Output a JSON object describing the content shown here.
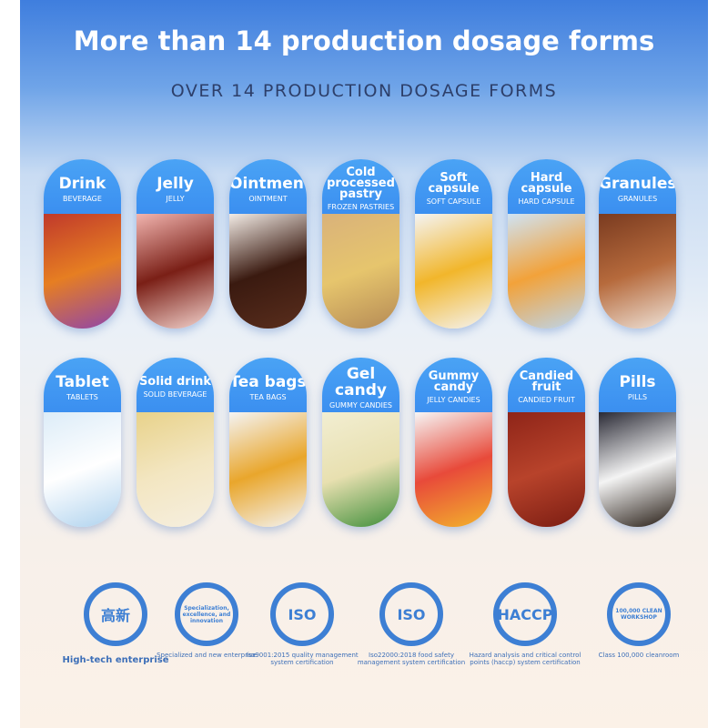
{
  "header": {
    "title": "More than 14 production dosage forms",
    "subtitle": "OVER 14 PRODUCTION DOSAGE FORMS"
  },
  "forms": [
    {
      "title": "Drink",
      "sub": "BEVERAGE",
      "colors": [
        "#c0392b",
        "#e67e22",
        "#8e44ad"
      ]
    },
    {
      "title": "Jelly",
      "sub": "JELLY",
      "colors": [
        "#f2b5b0",
        "#7a1f16",
        "#f5d5cf"
      ]
    },
    {
      "title": "Ointment",
      "sub": "OINTMENT",
      "colors": [
        "#f3ece6",
        "#3a1a10",
        "#5a2e1d"
      ]
    },
    {
      "title": "Cold processed pastry",
      "sub": "FROZEN PASTRIES",
      "colors": [
        "#d9b27a",
        "#e6c56d",
        "#b58a55"
      ]
    },
    {
      "title": "Soft capsule",
      "sub": "SOFT CAPSULE",
      "colors": [
        "#f4f4f4",
        "#f2b62b",
        "#f4f4f4"
      ]
    },
    {
      "title": "Hard capsule",
      "sub": "HARD CAPSULE",
      "colors": [
        "#cfe3f4",
        "#f2a23a",
        "#bcd6ee"
      ]
    },
    {
      "title": "Granules",
      "sub": "GRANULES",
      "colors": [
        "#7a3b20",
        "#b66a3c",
        "#efe4da"
      ]
    },
    {
      "title": "Tablet",
      "sub": "TABLETS",
      "colors": [
        "#dcecf8",
        "#ffffff",
        "#aed2ee"
      ]
    },
    {
      "title": "Solid drink",
      "sub": "SOLID BEVERAGE",
      "colors": [
        "#e8d28a",
        "#f3e6c1",
        "#f6efe0"
      ]
    },
    {
      "title": "Tea bags",
      "sub": "TEA BAGS",
      "colors": [
        "#f4f4f4",
        "#e9a62c",
        "#f4f4f4"
      ]
    },
    {
      "title": "Gel candy",
      "sub": "GUMMY CANDIES",
      "colors": [
        "#f2eed2",
        "#e8e0b0",
        "#3f8e3a"
      ]
    },
    {
      "title": "Gummy candy",
      "sub": "JELLY CANDIES",
      "colors": [
        "#f6f6f6",
        "#e84a3a",
        "#f3b52c"
      ]
    },
    {
      "title": "Candied fruit",
      "sub": "CANDIED FRUIT",
      "colors": [
        "#8e2418",
        "#b8432b",
        "#7a1c12"
      ]
    },
    {
      "title": "Pills",
      "sub": "PILLS",
      "colors": [
        "#2a2a35",
        "#f4f4f4",
        "#241a12"
      ]
    }
  ],
  "certs": [
    {
      "badge": "高新",
      "label": "High-tech enterprise"
    },
    {
      "badge": "Specialization, excellence, and innovation",
      "label": "Specialized and new enterprise"
    },
    {
      "badge": "ISO",
      "label": "Iso9001:2015 quality management system certification"
    },
    {
      "badge": "ISO",
      "label": "Iso22000:2018 food safety management system certification"
    },
    {
      "badge": "HACCP",
      "label": "Hazard analysis and critical control points (haccp) system certification"
    },
    {
      "badge": "100,000 CLEAN WORKSHOP",
      "label": "Class 100,000 cleanroom"
    }
  ],
  "accent": "#3b8ff0"
}
